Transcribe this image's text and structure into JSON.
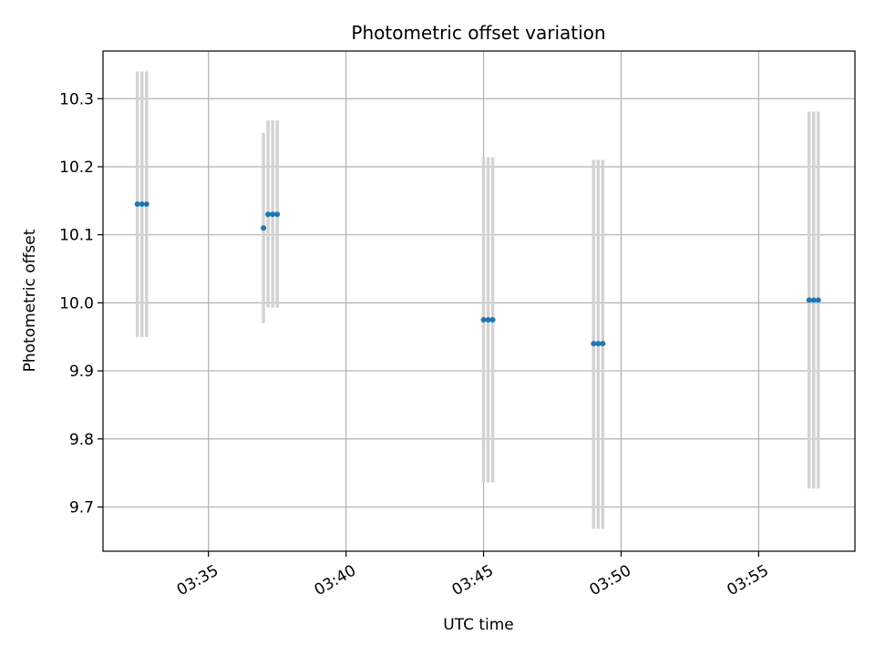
{
  "chart_data": {
    "type": "scatter",
    "title": "Photometric offset variation",
    "xlabel": "UTC time",
    "ylabel": "Photometric offset",
    "grid": true,
    "x_ticks": [
      "03:35",
      "03:40",
      "03:45",
      "03:50",
      "03:55"
    ],
    "y_ticks": [
      "9.7",
      "9.8",
      "9.9",
      "10.0",
      "10.1",
      "10.2",
      "10.3"
    ],
    "xlim": [
      "03:31:10",
      "03:58:30"
    ],
    "ylim": [
      9.635,
      10.37
    ],
    "marker_color": "#1f77b4",
    "errorbar_color": "#d3d3d3",
    "points": [
      {
        "x": "03:32:25",
        "y": 10.145,
        "yerr_low": 9.95,
        "yerr_high": 10.34
      },
      {
        "x": "03:32:35",
        "y": 10.145,
        "yerr_low": 9.95,
        "yerr_high": 10.34
      },
      {
        "x": "03:32:45",
        "y": 10.145,
        "yerr_low": 9.95,
        "yerr_high": 10.34
      },
      {
        "x": "03:37:00",
        "y": 10.11,
        "yerr_low": 9.97,
        "yerr_high": 10.25
      },
      {
        "x": "03:37:10",
        "y": 10.13,
        "yerr_low": 9.993,
        "yerr_high": 10.268
      },
      {
        "x": "03:37:20",
        "y": 10.13,
        "yerr_low": 9.993,
        "yerr_high": 10.268
      },
      {
        "x": "03:37:30",
        "y": 10.13,
        "yerr_low": 9.993,
        "yerr_high": 10.268
      },
      {
        "x": "03:45:00",
        "y": 9.975,
        "yerr_low": 9.736,
        "yerr_high": 10.214
      },
      {
        "x": "03:45:10",
        "y": 9.975,
        "yerr_low": 9.736,
        "yerr_high": 10.214
      },
      {
        "x": "03:45:20",
        "y": 9.975,
        "yerr_low": 9.736,
        "yerr_high": 10.214
      },
      {
        "x": "03:49:00",
        "y": 9.94,
        "yerr_low": 9.668,
        "yerr_high": 10.21
      },
      {
        "x": "03:49:10",
        "y": 9.94,
        "yerr_low": 9.668,
        "yerr_high": 10.21
      },
      {
        "x": "03:49:20",
        "y": 9.94,
        "yerr_low": 9.668,
        "yerr_high": 10.21
      },
      {
        "x": "03:56:50",
        "y": 10.004,
        "yerr_low": 9.727,
        "yerr_high": 10.281
      },
      {
        "x": "03:57:00",
        "y": 10.004,
        "yerr_low": 9.727,
        "yerr_high": 10.281
      },
      {
        "x": "03:57:10",
        "y": 10.004,
        "yerr_low": 9.727,
        "yerr_high": 10.281
      }
    ]
  }
}
